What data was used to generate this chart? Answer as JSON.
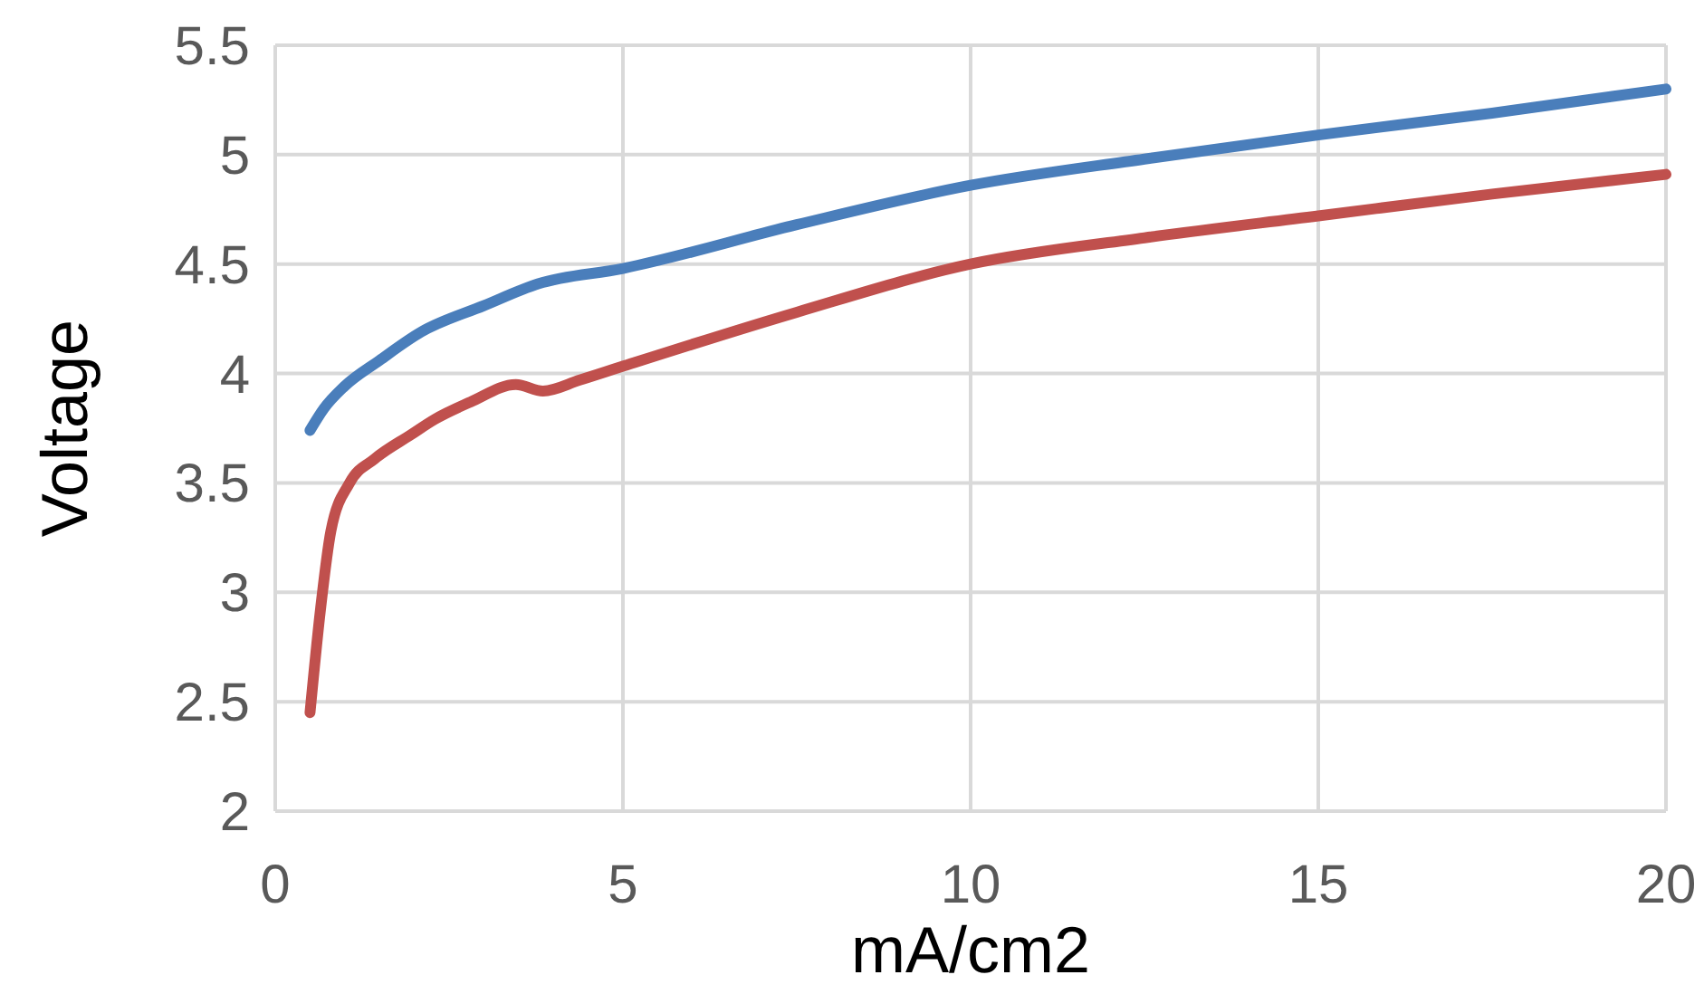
{
  "chart_data": {
    "type": "line",
    "xlabel": "mA/cm2",
    "ylabel": "Voltage",
    "xlim": [
      0,
      20
    ],
    "xticks": [
      0,
      5,
      10,
      15,
      20
    ],
    "ylim": [
      2,
      5.5
    ],
    "yticks": [
      2,
      2.5,
      3,
      3.5,
      4,
      4.5,
      5,
      5.5
    ],
    "grid": true,
    "line_style": "solid",
    "marker": "none",
    "series": [
      {
        "color": "#4a7ebb",
        "x": [
          0.5,
          0.7,
          0.99,
          1.5,
          2.1,
          3,
          3.78,
          5,
          7.5,
          10,
          12.5,
          15,
          17.5,
          20
        ],
        "values": [
          3.74,
          3.84,
          3.94,
          4.06,
          4.19,
          4.31,
          4.41,
          4.48,
          4.68,
          4.86,
          4.98,
          5.09,
          5.19,
          5.3
        ]
      },
      {
        "color": "#c0504d",
        "x": [
          0.5,
          0.65,
          0.8,
          1.07,
          1.43,
          1.95,
          2.29,
          2.81,
          3.46,
          3.85,
          4.38,
          4.97,
          7.5,
          10,
          12.5,
          15,
          17.5,
          20
        ],
        "values": [
          2.45,
          2.92,
          3.28,
          3.5,
          3.61,
          3.72,
          3.79,
          3.87,
          3.95,
          3.92,
          3.97,
          4.03,
          4.28,
          4.5,
          4.62,
          4.72,
          4.82,
          4.91
        ]
      }
    ]
  }
}
